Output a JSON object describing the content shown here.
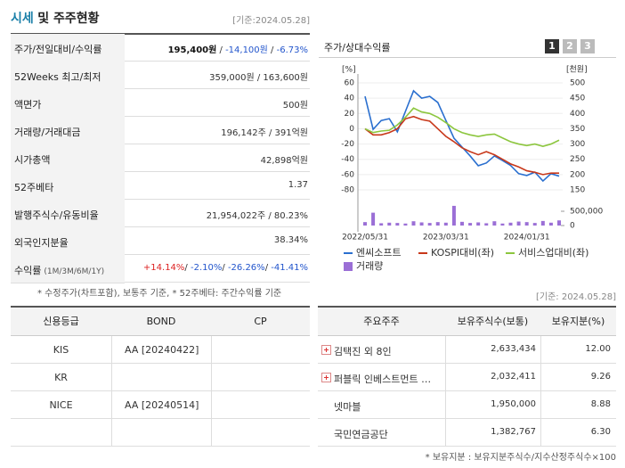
{
  "header": {
    "title": "시세",
    "title_rest": "및 주주현황",
    "date": "[기준:2024.05.28]"
  },
  "quote_table": {
    "rows": [
      {
        "label": "주가/전일대비/수익률",
        "value": [
          {
            "text": "195,400원",
            "bold": true
          },
          {
            "text": " / "
          },
          {
            "text": "-14,100원",
            "color": "#2255cc"
          },
          {
            "text": " / "
          },
          {
            "text": "-6.73%",
            "color": "#2255cc"
          }
        ]
      },
      {
        "label": "52Weeks 최고/최저",
        "value": [
          {
            "text": "359,000원 / 163,600원"
          }
        ]
      },
      {
        "label": "액면가",
        "value": [
          {
            "text": "500원"
          }
        ]
      },
      {
        "label": "거래량/거래대금",
        "value": [
          {
            "text": "196,142주 / 391억원"
          }
        ]
      },
      {
        "label": "시가총액",
        "value": [
          {
            "text": "42,898억원"
          }
        ]
      },
      {
        "label": "52주베타",
        "value": [
          {
            "text": "1.37"
          }
        ]
      },
      {
        "label": "발행주식수/유동비율",
        "value": [
          {
            "text": "21,954,022주 / 80.23%"
          }
        ]
      },
      {
        "label": "외국인지분율",
        "value": [
          {
            "text": "38.34%"
          }
        ]
      },
      {
        "label": "수익률",
        "label_note": "(1M/3M/6M/1Y)",
        "value": [
          {
            "text": "+14.14%",
            "color": "#dd2222"
          },
          {
            "text": "/ "
          },
          {
            "text": "-2.10%",
            "color": "#2255cc"
          },
          {
            "text": "/ "
          },
          {
            "text": "-26.26%",
            "color": "#2255cc"
          },
          {
            "text": "/ "
          },
          {
            "text": "-41.41%",
            "color": "#2255cc"
          }
        ]
      }
    ]
  },
  "quote_note": "* 수정주가(차트포함), 보통주 기준, * 52주베타: 주간수익률 기준",
  "chart_tabs": [
    "1",
    "2",
    "3"
  ],
  "chart_data": [
    {
      "type": "line",
      "title": "주가/상대수익률",
      "y_label": "[%]",
      "y2_label": "[천원]",
      "categories": [
        "2022/05/31",
        null,
        null,
        null,
        null,
        null,
        null,
        null,
        null,
        null,
        "2023/03/31",
        null,
        null,
        null,
        null,
        null,
        null,
        null,
        null,
        null,
        "2024/01/31",
        null,
        null,
        null,
        null
      ],
      "ylim": [
        -80,
        60
      ],
      "yticks": [
        60,
        40,
        20,
        0,
        -20,
        -40,
        -60,
        -80
      ],
      "y2lim": [
        150,
        500
      ],
      "y2ticks": [
        500,
        450,
        400,
        350,
        300,
        250,
        200,
        150
      ],
      "grid": true,
      "series": [
        {
          "name": "엔씨소프트",
          "color": "#2a6fcf",
          "axis": "y2",
          "values": [
            456,
            348,
            377,
            383,
            340,
            407,
            474,
            450,
            456,
            436,
            377,
            319,
            290,
            261,
            229,
            238,
            261,
            246,
            230,
            203,
            197,
            208,
            179,
            203,
            195
          ]
        },
        {
          "name": "KOSPI대비(좌)",
          "color": "#c8381a",
          "values": [
            0,
            -8,
            -8,
            -5,
            0,
            13,
            16,
            12,
            10,
            0,
            -10,
            -17,
            -25,
            -30,
            -34,
            -30,
            -34,
            -40,
            -46,
            -50,
            -55,
            -57,
            -60,
            -58,
            -58
          ]
        },
        {
          "name": "서비스업대비(좌)",
          "color": "#8cc63e",
          "values": [
            0,
            -5,
            -3,
            -2,
            5,
            15,
            27,
            22,
            20,
            15,
            8,
            0,
            -5,
            -8,
            -10,
            -8,
            -7,
            -12,
            -17,
            -20,
            -22,
            -20,
            -23,
            -20,
            -15
          ]
        }
      ]
    },
    {
      "type": "bar",
      "ylim": [
        0,
        700000
      ],
      "yticks": [
        {
          "value": 500000,
          "label": "500,000"
        },
        0
      ],
      "series": [
        {
          "name": "거래량",
          "color": "#9b6fd6",
          "values": [
            120000,
            450000,
            80000,
            100000,
            90000,
            70000,
            150000,
            110000,
            90000,
            120000,
            100000,
            690000,
            130000,
            90000,
            110000,
            80000,
            150000,
            70000,
            100000,
            140000,
            120000,
            90000,
            160000,
            100000,
            180000
          ]
        }
      ]
    }
  ],
  "rating_table": {
    "headers": [
      "신용등급",
      "BOND",
      "CP"
    ],
    "rows": [
      [
        "KIS",
        "AA   [20240422]"
      ],
      [
        "KR"
      ],
      [
        "NICE",
        "AA   [20240514]"
      ]
    ]
  },
  "holder_date": "[기준: 2024.05.28]",
  "holder_table": {
    "headers": [
      "주요주주",
      "보유주식수(보통)",
      "보유지분(%)"
    ],
    "rows": [
      {
        "expandable": true,
        "cells": [
          "김택진 외 8인",
          "2,633,434",
          "12.00"
        ]
      },
      {
        "expandable": true,
        "cells": [
          "퍼블릭 인베스트먼트 …",
          "2,032,411",
          "9.26"
        ]
      },
      {
        "expandable": false,
        "cells": [
          "넷마블",
          "1,950,000",
          "8.88"
        ]
      },
      {
        "expandable": false,
        "cells": [
          "국민연금공단",
          "1,382,767",
          "6.30"
        ]
      }
    ]
  },
  "holder_note": "* 보유지분 : 보유지분주식수/지수산정주식수×100"
}
